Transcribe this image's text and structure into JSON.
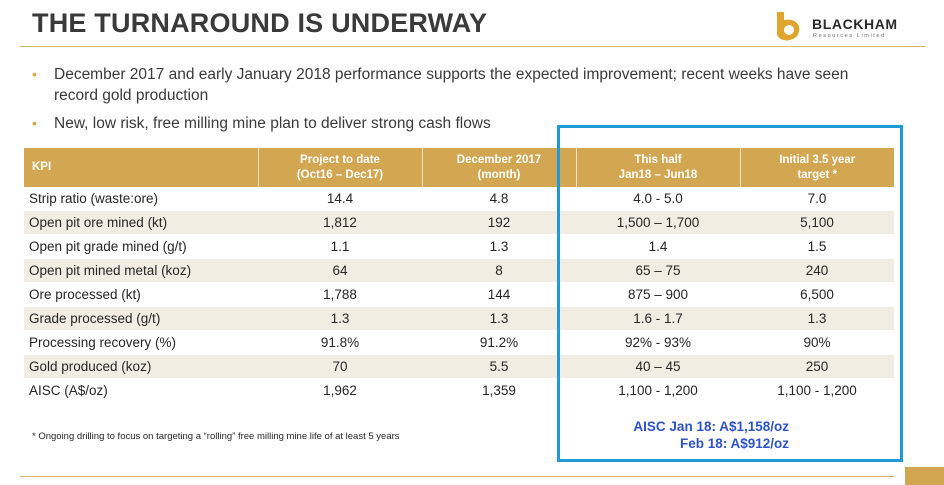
{
  "slide": {
    "title": "THE TURNAROUND IS UNDERWAY",
    "logo": {
      "name": "BLACKHAM",
      "subtitle": "Resources Limited"
    },
    "bullets": [
      "December 2017 and early January 2018 performance supports the expected improvement; recent weeks have seen record gold production",
      "New, low risk, free milling mine plan to deliver strong cash flows"
    ],
    "table": {
      "headers": [
        "KPI",
        "Project to date\n(Oct16 – Dec17)",
        "December 2017\n(month)",
        "This half\nJan18 – Jun18",
        "Initial 3.5 year\ntarget *"
      ],
      "rows": [
        [
          "Strip ratio (waste:ore)",
          "14.4",
          "4.8",
          "4.0 - 5.0",
          "7.0"
        ],
        [
          "Open pit ore mined (kt)",
          "1,812",
          "192",
          "1,500 – 1,700",
          "5,100"
        ],
        [
          "Open pit grade mined (g/t)",
          "1.1",
          "1.3",
          "1.4",
          "1.5"
        ],
        [
          "Open pit mined metal (koz)",
          "64",
          "8",
          "65 – 75",
          "240"
        ],
        [
          "Ore processed (kt)",
          "1,788",
          "144",
          "875 – 900",
          "6,500"
        ],
        [
          "Grade processed (g/t)",
          "1.3",
          "1.3",
          "1.6 - 1.7",
          "1.3"
        ],
        [
          "Processing recovery (%)",
          "91.8%",
          "91.2%",
          "92% - 93%",
          "90%"
        ],
        [
          "Gold produced (koz)",
          "70",
          "5.5",
          "40 – 45",
          "250"
        ],
        [
          "AISC (A$/oz)",
          "1,962",
          "1,359",
          "1,100 - 1,200",
          "1,100 - 1,200"
        ]
      ]
    },
    "footnote": "* Ongoing drilling to focus on targeting a “rolling” free milling mine life of at least 5 years",
    "aisc_note": {
      "line1": "AISC  Jan 18: A$1,158/oz",
      "line2": "Feb 18: A$912/oz"
    },
    "colors": {
      "accent_gold": "#d3a651",
      "highlight_blue": "#1f9ad6",
      "note_blue": "#2e53c9",
      "row_alt": "#f2ede3"
    }
  }
}
